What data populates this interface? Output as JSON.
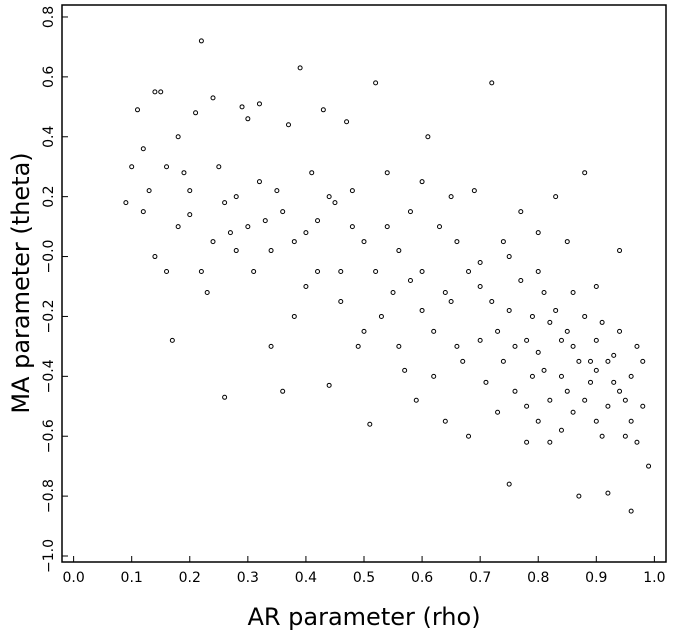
{
  "chart_data": {
    "type": "scatter",
    "x_label": "AR parameter (rho)",
    "y_label": "MA parameter (theta)",
    "xlim": [
      -0.02,
      1.02
    ],
    "ylim": [
      -1.02,
      0.84
    ],
    "xticks": [
      {
        "value": 0,
        "label": "0.0"
      },
      0.1,
      0.2,
      0.3,
      0.4,
      0.5,
      0.6,
      0.7,
      0.8,
      0.9,
      {
        "value": 1,
        "label": "1.0"
      }
    ],
    "yticks": [
      {
        "value": -1,
        "label": "−1.0"
      },
      {
        "value": -0.8,
        "label": "−0.8"
      },
      {
        "value": -0.6,
        "label": "−0.6"
      },
      {
        "value": -0.4,
        "label": "−0.4"
      },
      {
        "value": -0.2,
        "label": "−0.2"
      },
      {
        "value": 0,
        "label": "−0.0"
      },
      0.2,
      0.4,
      0.6,
      0.8
    ],
    "color": "#000000",
    "x": [
      0.09,
      0.11,
      0.12,
      0.13,
      0.14,
      0.15,
      0.16,
      0.17,
      0.18,
      0.19,
      0.2,
      0.21,
      0.22,
      0.23,
      0.24,
      0.25,
      0.26,
      0.27,
      0.28,
      0.29,
      0.3,
      0.31,
      0.32,
      0.33,
      0.34,
      0.35,
      0.36,
      0.37,
      0.38,
      0.39,
      0.4,
      0.41,
      0.42,
      0.43,
      0.44,
      0.45,
      0.46,
      0.47,
      0.48,
      0.49,
      0.5,
      0.51,
      0.52,
      0.53,
      0.54,
      0.55,
      0.56,
      0.57,
      0.58,
      0.59,
      0.6,
      0.61,
      0.62,
      0.63,
      0.64,
      0.65,
      0.66,
      0.67,
      0.68,
      0.69,
      0.7,
      0.71,
      0.72,
      0.73,
      0.74,
      0.75,
      0.76,
      0.77,
      0.78,
      0.79,
      0.8,
      0.81,
      0.82,
      0.83,
      0.84,
      0.85,
      0.86,
      0.87,
      0.88,
      0.89,
      0.9,
      0.91,
      0.92,
      0.93,
      0.94,
      0.95,
      0.96,
      0.97,
      0.98,
      0.99,
      0.72,
      0.75,
      0.78,
      0.8,
      0.82,
      0.84,
      0.86,
      0.88,
      0.9,
      0.92,
      0.94,
      0.96,
      0.85,
      0.87,
      0.89,
      0.91,
      0.93,
      0.95,
      0.97,
      0.83,
      0.81,
      0.79,
      0.77,
      0.74,
      0.7,
      0.68,
      0.66,
      0.64,
      0.62,
      0.6,
      0.58,
      0.56,
      0.54,
      0.52,
      0.5,
      0.48,
      0.46,
      0.44,
      0.42,
      0.4,
      0.38,
      0.36,
      0.34,
      0.32,
      0.3,
      0.28,
      0.26,
      0.24,
      0.22,
      0.2,
      0.18,
      0.16,
      0.14,
      0.12,
      0.1,
      0.88,
      0.9,
      0.92,
      0.94,
      0.96,
      0.98,
      0.86,
      0.84,
      0.82,
      0.8,
      0.78,
      0.76,
      0.73,
      0.7,
      0.75,
      0.8,
      0.85,
      0.9,
      0.65,
      0.6
    ],
    "values": [
      0.18,
      0.49,
      0.36,
      0.22,
      0.55,
      0.55,
      -0.05,
      -0.28,
      0.4,
      0.28,
      0.14,
      0.48,
      0.72,
      -0.12,
      0.53,
      0.3,
      -0.47,
      0.08,
      0.2,
      0.5,
      0.46,
      -0.05,
      0.51,
      0.12,
      -0.3,
      0.22,
      -0.45,
      0.44,
      0.05,
      0.63,
      -0.1,
      0.28,
      0.12,
      0.49,
      -0.43,
      0.18,
      -0.05,
      0.45,
      0.22,
      -0.3,
      0.05,
      -0.56,
      0.58,
      -0.2,
      0.28,
      -0.12,
      0.02,
      -0.38,
      0.15,
      -0.48,
      -0.05,
      0.4,
      -0.25,
      0.1,
      -0.55,
      -0.15,
      0.05,
      -0.35,
      -0.6,
      0.22,
      -0.1,
      -0.42,
      0.58,
      -0.25,
      0.05,
      -0.76,
      -0.3,
      0.15,
      -0.5,
      -0.2,
      -0.05,
      -0.38,
      -0.62,
      0.2,
      -0.28,
      -0.45,
      -0.12,
      -0.8,
      0.28,
      -0.35,
      -0.55,
      -0.22,
      -0.79,
      -0.42,
      0.02,
      -0.6,
      -0.85,
      -0.3,
      -0.5,
      -0.7,
      -0.15,
      -0.18,
      -0.28,
      -0.32,
      -0.22,
      -0.4,
      -0.3,
      -0.48,
      -0.38,
      -0.5,
      -0.45,
      -0.55,
      -0.25,
      -0.35,
      -0.42,
      -0.6,
      -0.33,
      -0.48,
      -0.62,
      -0.18,
      -0.12,
      -0.4,
      -0.08,
      -0.35,
      -0.28,
      -0.05,
      -0.3,
      -0.12,
      -0.4,
      -0.18,
      -0.08,
      -0.3,
      0.1,
      -0.05,
      -0.25,
      0.1,
      -0.15,
      0.2,
      -0.05,
      0.08,
      -0.2,
      0.15,
      0.02,
      0.25,
      0.1,
      0.02,
      0.18,
      0.05,
      -0.05,
      0.22,
      0.1,
      0.3,
      0,
      0.15,
      0.3,
      -0.2,
      -0.28,
      -0.35,
      -0.25,
      -0.4,
      -0.35,
      -0.52,
      -0.58,
      -0.48,
      -0.55,
      -0.62,
      -0.45,
      -0.52,
      -0.02,
      0,
      0.08,
      0.05,
      -0.1,
      0.2,
      0.25
    ]
  }
}
